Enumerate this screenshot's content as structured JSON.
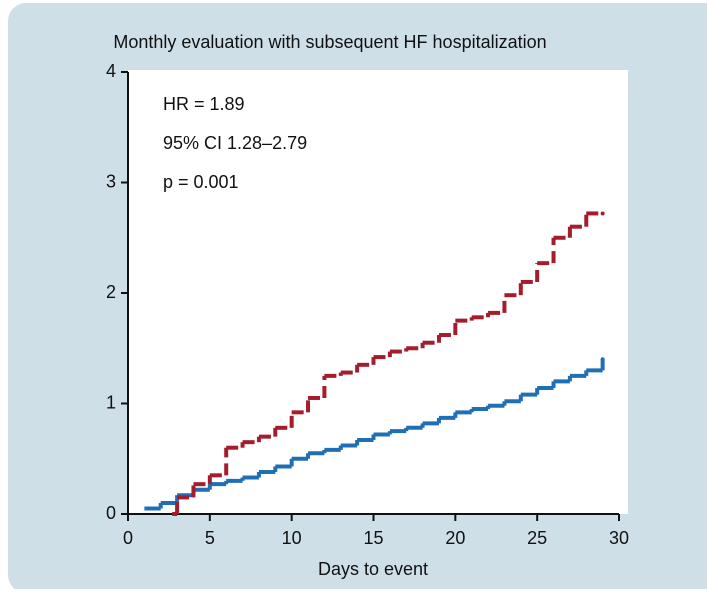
{
  "chart_data": {
    "type": "line",
    "drawstyle": "steps-post",
    "title": "Monthly evaluation with subsequent HF hospitalization",
    "xlabel": "Days to event",
    "annotations": [
      "HR = 1.89",
      "95% CI 1.28–2.79",
      "p = 0.001"
    ],
    "xlim": [
      0,
      30
    ],
    "xticks": [
      0,
      5,
      10,
      15,
      20,
      25,
      30
    ],
    "ylim": [
      0,
      4
    ],
    "yticks": [
      0,
      1,
      2,
      3,
      4
    ],
    "grid": false,
    "series": [
      {
        "color": "#1f6fb5",
        "linestyle": "solid",
        "x": [
          1,
          2,
          3,
          4,
          5,
          6,
          7,
          8,
          9,
          10,
          11,
          12,
          13,
          14,
          15,
          16,
          17,
          18,
          19,
          20,
          21,
          22,
          23,
          24,
          25,
          26,
          27,
          28,
          29
        ],
        "values": [
          0.05,
          0.1,
          0.17,
          0.22,
          0.27,
          0.3,
          0.33,
          0.38,
          0.43,
          0.5,
          0.55,
          0.58,
          0.62,
          0.67,
          0.72,
          0.75,
          0.78,
          0.82,
          0.87,
          0.92,
          0.95,
          0.98,
          1.02,
          1.08,
          1.14,
          1.2,
          1.25,
          1.3,
          1.4
        ]
      },
      {
        "color": "#a31d2c",
        "linestyle": "dashed",
        "x": [
          2.7,
          3,
          4,
          5,
          6,
          7,
          8,
          9,
          10,
          11,
          12,
          13,
          14,
          15,
          16,
          17,
          18,
          19,
          20,
          21,
          22,
          23,
          24,
          25,
          26,
          27,
          28,
          29
        ],
        "values": [
          0,
          0.15,
          0.27,
          0.35,
          0.6,
          0.65,
          0.7,
          0.78,
          0.92,
          1.05,
          1.25,
          1.28,
          1.35,
          1.42,
          1.47,
          1.5,
          1.55,
          1.62,
          1.75,
          1.78,
          1.82,
          1.98,
          2.1,
          2.27,
          2.5,
          2.6,
          2.72,
          2.72
        ]
      }
    ]
  }
}
